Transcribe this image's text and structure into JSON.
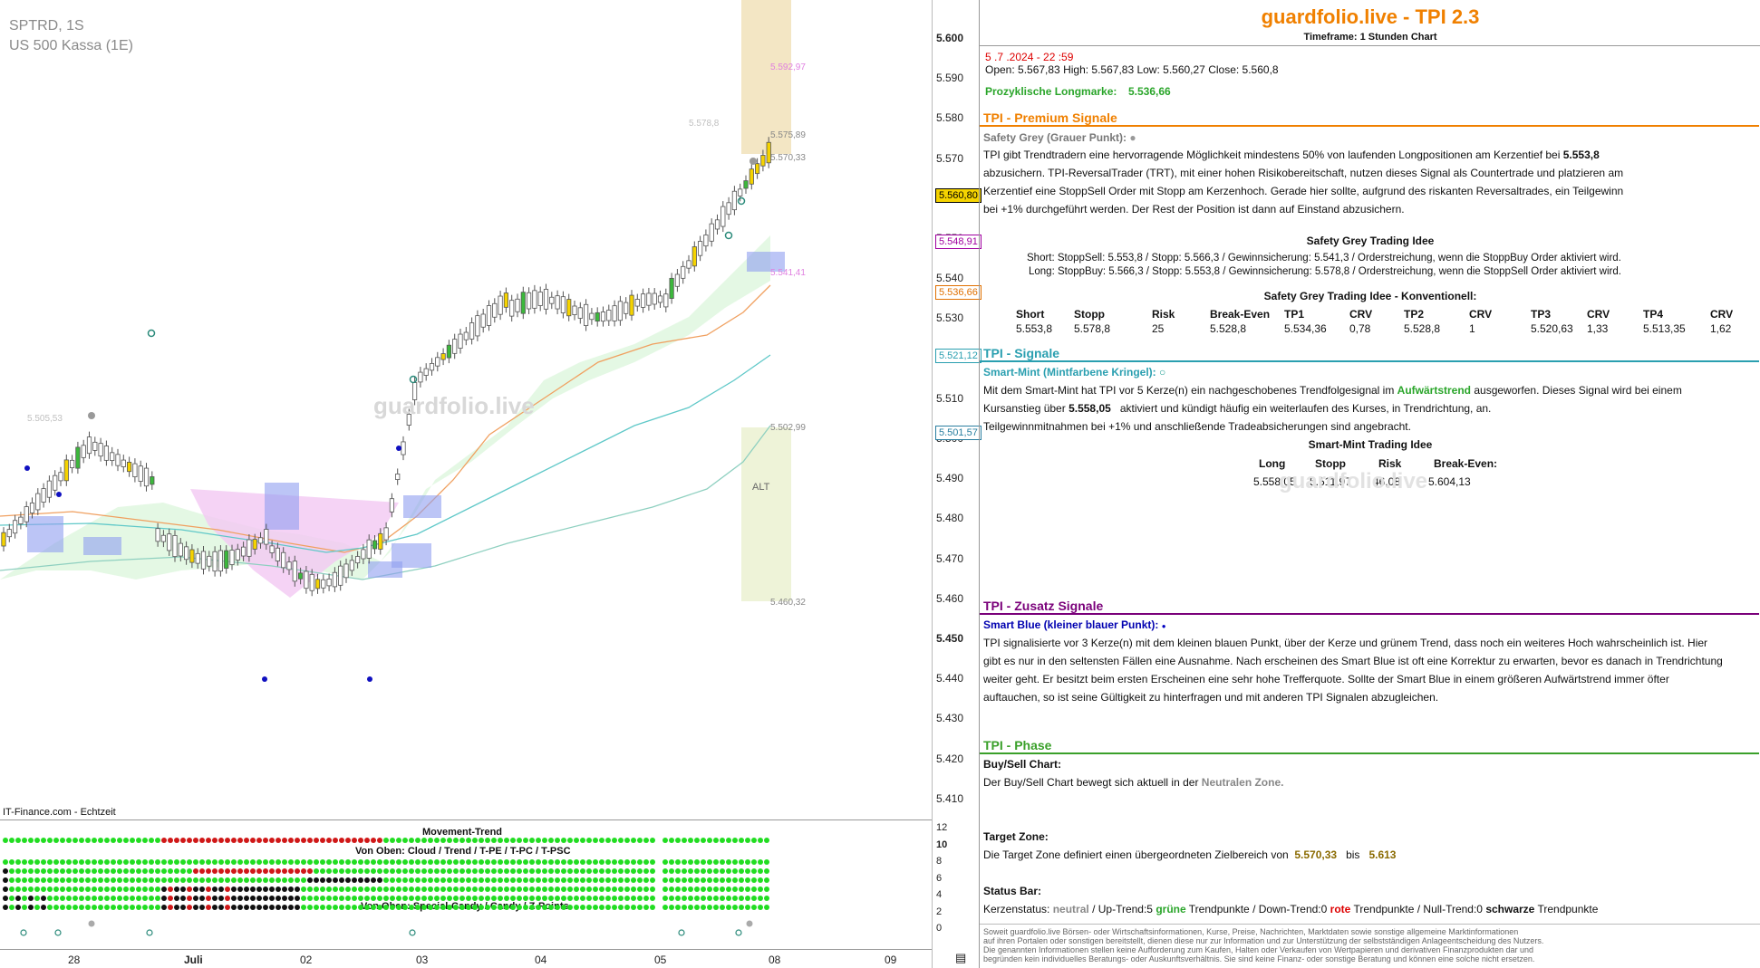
{
  "chart": {
    "symbol": "SPTRD, 1S",
    "instrument": "US 500 Kassa (1E)",
    "source_label": "IT-Finance.com - Echtzeit",
    "watermark": "guardfolio.live",
    "price_ticks": [
      "5.600",
      "5.590",
      "5.580",
      "5.570",
      "5.560",
      "5.550",
      "5.540",
      "5.530",
      "5.520",
      "5.510",
      "5.500",
      "5.490",
      "5.480",
      "5.470",
      "5.460",
      "5.450",
      "5.440",
      "5.430",
      "5.420",
      "5.410"
    ],
    "price_tags": [
      {
        "text": "5.560,80",
        "bg": "#f5d300",
        "fg": "#000"
      },
      {
        "text": "5.548,91",
        "bg": "#ffffff",
        "fg": "#a000a0"
      },
      {
        "text": "5.536,66",
        "bg": "#ffffff",
        "fg": "#e07000"
      },
      {
        "text": "5.521,12",
        "bg": "#ffffff",
        "fg": "#2a9fb0"
      },
      {
        "text": "5.501,57",
        "bg": "#ffffff",
        "fg": "#2a7fa0"
      }
    ],
    "annotations": [
      "5.592,97",
      "5.578,8",
      "5.575,89",
      "5.570,33",
      "5.541,41",
      "5.505,53",
      "5.502,99",
      "5.460,32",
      "ALT"
    ],
    "dates": [
      "28",
      "Juli",
      "02",
      "03",
      "04",
      "05",
      "08",
      "09"
    ],
    "movement_trend_title": "Movement-Trend",
    "movement_label_1": "Von Oben: Cloud / Trend / T-PE / T-PC / T-PSC",
    "movement_label_2": "Von Oben: Special-Candy / Candy / Z-Points",
    "movement_ticks": [
      "12",
      "10",
      "8",
      "6",
      "4",
      "2",
      "0"
    ]
  },
  "panel": {
    "title": "guardfolio.live - TPI 2.3",
    "timeframe": "Timeframe: 1 Stunden Chart",
    "datetime": "5 .7 .2024  - 22 :59",
    "ohlc": "Open: 5.567,83     High: 5.567,83      Low:  5.560,27      Close: 5.560,8",
    "longmarke_label": "Prozyklische Longmarke:",
    "longmarke_value": "5.536,66",
    "premium": {
      "title": "TPI - Premium Signale",
      "subtitle": "Safety Grey (Grauer Punkt):",
      "text_a": "TPI gibt Trendtradern eine hervorragende Möglichkeit mindestens 50% von laufenden Longpositionen am Kerzentief bei",
      "value": "5.553,8",
      "text_b": "abzusichern. TPI-ReversalTrader (TRT), mit einer hohen Risikobereitschaft, nutzen dieses Signal als Countertrade und platzieren am",
      "text_c": "Kerzentief eine StoppSell Order mit Stopp am Kerzenhoch. Gerade hier sollte, aufgrund des riskanten Reversaltrades, ein Teilgewinn",
      "text_d": "bei +1% durchgeführt werden. Der Rest der Position ist dann auf Einstand abzusichern.",
      "idea_title": "Safety Grey Trading Idee",
      "short_line": "Short: StoppSell:   5.553,8   / Stopp:  5.566,3   / Gewinnsicherung: 5.541,3    / Orderstreichung, wenn die StoppBuy Order aktiviert wird.",
      "long_line": "Long: StoppBuy:   5.566,3  / Stopp:  5.553,8   / Gewinnsicherung: 5.578,8    / Orderstreichung, wenn die StoppSell Order aktiviert wird.",
      "konv_title": "Safety Grey Trading Idee - Konventionell:",
      "konv_headers": [
        "Short",
        "Stopp",
        "Risk",
        "Break-Even",
        "TP1",
        "CRV",
        "TP2",
        "CRV",
        "TP3",
        "CRV",
        "TP4",
        "CRV"
      ],
      "konv_values": [
        "5.553,8",
        "5.578,8",
        "25",
        "5.528,8",
        "5.534,36",
        "0,78",
        "5.528,8",
        "1",
        "5.520,63",
        "1,33",
        "5.513,35",
        "1,62"
      ]
    },
    "signale": {
      "title": "TPI - Signale",
      "subtitle": "Smart-Mint (Mintfarbene Kringel):",
      "text_a1": "Mit dem Smart-Mint hat TPI vor 5  Kerze(n) ein nachgeschobenes Trendfolgesignal im",
      "trend_word": "Aufwärtstrend",
      "text_a2": "ausgeworfen. Dieses Signal wird bei einem",
      "text_b1": "Kursanstieg über",
      "value": "5.558,05",
      "text_b2": "aktiviert und kündigt häufig ein weiterlaufen des Kurses, in Trendrichtung, an.",
      "text_c": "Teilgewinnmitnahmen bei +1% und anschließende Tradeabsicherungen sind angebracht.",
      "idea_title": "Smart-Mint Trading Idee",
      "headers": [
        "Long",
        "Stopp",
        "Risk",
        "Break-Even:"
      ],
      "values": [
        "5.558,05",
        "5.511,97",
        "46,08",
        "5.604,13"
      ]
    },
    "zusatz": {
      "title": "TPI - Zusatz Signale",
      "subtitle": "Smart Blue (kleiner blauer Punkt):",
      "line1": "TPI signalisierte vor 3  Kerze(n) mit dem kleinen blauen Punkt, über der Kerze und grünem Trend, dass noch ein weiteres Hoch wahrscheinlich ist. Hier",
      "line2": "gibt es nur in den seltensten Fällen eine Ausnahme. Nach erscheinen des Smart Blue ist oft eine Korrektur zu erwarten, bevor es danach in Trendrichtung",
      "line3": "weiter geht. Er besitzt beim ersten Erscheinen eine sehr hohe Trefferquote. Sollte der Smart Blue in einem größeren Aufwärtstrend immer öfter",
      "line4": "auftauchen, so ist seine Gültigkeit zu hinterfragen und mit anderen TPI Signalen abzugleichen."
    },
    "phase": {
      "title": "TPI - Phase",
      "bs_title": "Buy/Sell Chart:",
      "bs_text": "Der Buy/Sell Chart bewegt sich aktuell in der",
      "bs_zone": "Neutralen Zone.",
      "tz_title": "Target Zone:",
      "tz_text": "Die Target Zone definiert einen übergeordneten Zielbereich von",
      "tz_from": "5.570,33",
      "tz_bis": "bis",
      "tz_to": "5.613",
      "sb_title": "Status Bar:",
      "sb_k": "Kerzenstatus:",
      "sb_neutral": "neutral",
      "sb_up": " / Up-Trend:5",
      "sb_gruene": "grüne",
      "sb_tp1": "Trendpunkte  / Down-Trend:0",
      "sb_rote": "rote",
      "sb_tp2": "Trendpunkte  / Null-Trend:0",
      "sb_schwarze": "schwarze",
      "sb_tp3": "Trendpunkte"
    },
    "footer": [
      "Soweit guardfolio.live Börsen- oder Wirtschaftsinformationen, Kurse, Preise, Nachrichten, Marktdaten sowie sonstige allgemeine Marktinformationen",
      "auf ihren Portalen oder sonstigen bereitstellt, dienen diese nur zur Information und zur Unterstützung der selbstständigen Anlageentscheidung des Nutzers.",
      "Die genannten Informationen stellen keine Aufforderung zum Kaufen, Halten oder Verkaufen von Wertpapieren und derivativen Finanzprodukten dar und",
      "begründen kein individuelles Beratungs- oder Auskunftsverhältnis. Sie sind keine Finanz- oder sonstige Beratung und können eine solche nicht ersetzen."
    ]
  },
  "colors": {
    "accent": "#f08000",
    "premium_line": "#f08000",
    "signale_line": "#2a9fb0",
    "zusatz_line": "#7a007a",
    "phase_line": "#3aa02a"
  }
}
